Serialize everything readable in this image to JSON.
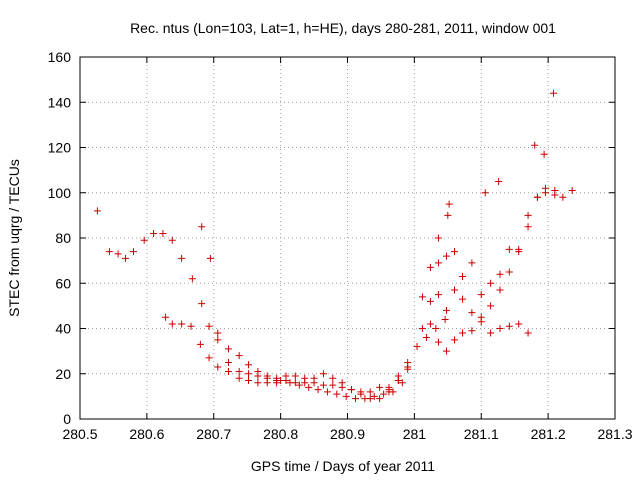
{
  "chart_data": {
    "type": "scatter",
    "title": "Rec. ntus (Lon=103, Lat=1, h=HE), days 280-281, 2011, window 001",
    "xlabel": "GPS time / Days of year 2011",
    "ylabel": "STEC from uqrg / TECUs",
    "xlim": [
      280.5,
      281.3
    ],
    "ylim": [
      0,
      160
    ],
    "xticks": [
      280.5,
      280.6,
      280.7,
      280.8,
      280.9,
      281,
      281.1,
      281.2,
      281.3
    ],
    "xtick_labels": [
      "280.5",
      "280.6",
      "280.7",
      "280.8",
      "280.9",
      "281",
      "281.1",
      "281.2",
      "281.3"
    ],
    "yticks": [
      0,
      20,
      40,
      60,
      80,
      100,
      120,
      140,
      160
    ],
    "ytick_labels": [
      "0",
      "20",
      "40",
      "60",
      "80",
      "100",
      "120",
      "140",
      "160"
    ],
    "grid": true,
    "marker": "+",
    "color": "#cc0000",
    "series": [
      {
        "x": [
          280.526,
          280.544,
          280.557,
          280.568,
          280.58,
          280.596,
          280.61,
          280.624,
          280.638,
          280.652,
          280.668,
          280.682,
          280.695,
          280.628,
          280.638,
          280.652,
          280.666,
          280.68,
          280.693,
          280.706,
          280.722,
          280.738,
          280.752,
          280.766,
          280.78,
          280.794,
          280.682,
          280.693,
          280.706,
          280.722,
          280.738,
          280.752,
          280.766,
          280.78,
          280.794,
          280.706,
          280.722,
          280.738,
          280.752,
          280.766,
          280.78,
          280.794,
          280.808,
          280.822,
          280.836,
          280.85,
          280.864,
          280.808,
          280.822,
          280.836,
          280.85,
          280.864,
          280.878,
          280.892,
          280.906,
          280.92,
          280.934,
          280.948,
          280.962,
          280.976,
          280.99,
          280.8,
          280.814,
          280.828,
          280.842,
          280.856,
          280.87,
          280.884,
          280.898,
          280.912,
          280.926,
          280.94,
          280.954,
          280.968,
          280.982,
          280.878,
          280.892,
          280.906,
          280.92,
          280.934,
          280.948,
          280.962,
          280.976,
          280.99,
          281.004,
          281.018,
          281.032,
          281.046,
          280.962,
          280.976,
          280.99,
          281.012,
          281.024,
          281.036,
          281.048,
          281.06,
          281.072,
          281.086,
          281.1,
          281.114,
          281.128,
          281.142,
          281.156,
          281.17,
          281.012,
          281.024,
          281.036,
          281.048,
          281.06,
          281.072,
          281.086,
          281.1,
          281.114,
          281.128,
          281.142,
          281.156,
          281.17,
          281.184,
          281.196,
          281.21,
          281.222,
          281.236,
          281.024,
          281.036,
          281.048,
          281.06,
          281.072,
          281.086,
          281.1,
          281.114,
          281.128,
          281.142,
          281.156,
          281.17,
          281.184,
          281.196,
          281.21,
          281.036,
          281.05,
          281.052,
          281.106,
          281.126,
          281.18,
          281.194,
          281.208
        ],
        "y": [
          92,
          74,
          73,
          71,
          74,
          79,
          82,
          82,
          79,
          71,
          62,
          85,
          71,
          45,
          42,
          42,
          41,
          33,
          27,
          23,
          21,
          18,
          17,
          16,
          16,
          16,
          51,
          41,
          38,
          31,
          28,
          24,
          21,
          19,
          18,
          35,
          25,
          21,
          20,
          19,
          18,
          17,
          17,
          16,
          16,
          16,
          15,
          19,
          19,
          18,
          18,
          20,
          15,
          14,
          13,
          12,
          12,
          14,
          13,
          17,
          22,
          17,
          16,
          15,
          14,
          13,
          12,
          11,
          10,
          9,
          9,
          10,
          11,
          12,
          16,
          18,
          16,
          13,
          11,
          9,
          9,
          14,
          17,
          25,
          32,
          36,
          40,
          44,
          12,
          19,
          23,
          54,
          52,
          55,
          48,
          57,
          53,
          47,
          43,
          38,
          40,
          41,
          42,
          38,
          40,
          42,
          34,
          30,
          35,
          38,
          39,
          45,
          50,
          57,
          65,
          75,
          85,
          98,
          100,
          99,
          98,
          101,
          67,
          69,
          72,
          74,
          63,
          69,
          55,
          60,
          64,
          75,
          74,
          90,
          98,
          102,
          101,
          80,
          90,
          95,
          100,
          105,
          121,
          117,
          144
        ]
      }
    ]
  }
}
